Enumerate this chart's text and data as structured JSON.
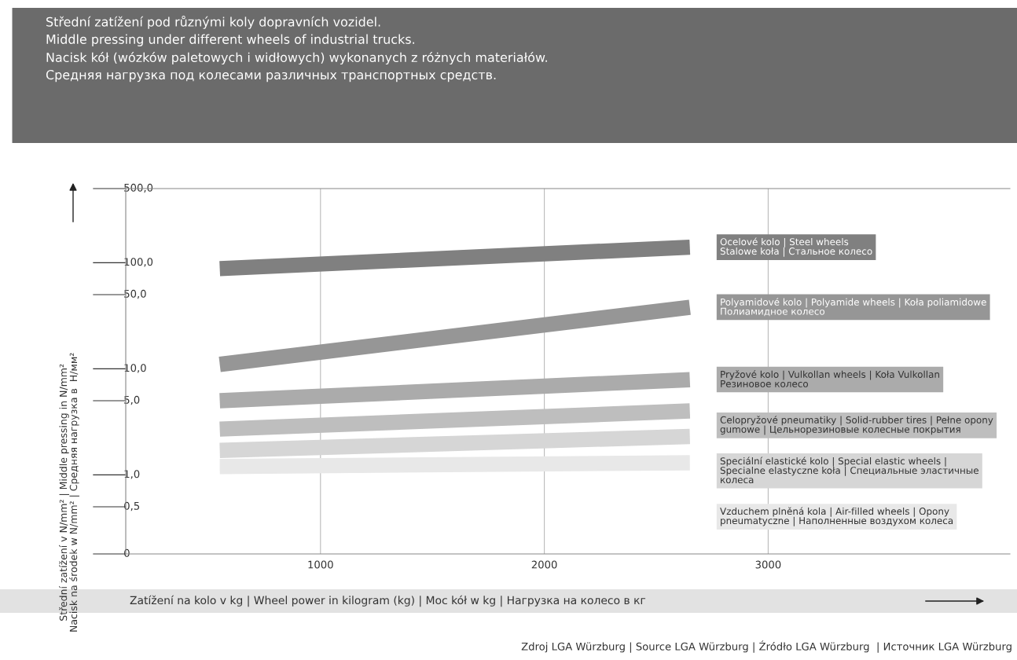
{
  "chart_data": {
    "type": "line",
    "title": "Střední zatížení pod různými koly dopravních vozidel.\nMiddle pressing under different wheels of industrial trucks.\nNacisk kół (wózków paletowych i widłowych) wykonanych z różnych materiałów.\nСредняя нагрузка под колесами различных транспортных средств.",
    "xlabel": "Zatížení na kolo v kg | Wheel power in kilogram (kg) | Moc kół w kg | Нагрузка на колесо в кг",
    "ylabel": "Střední zatížení v N/mm² | Middle pressing in N/mm²\nNacisk na środek w N/mm² | Средняя нагрузка в  Н/мм²",
    "annotations": [
      "Zdroj LGA Würzburg | Source LGA Würzburg | Źródło LGA Würzburg  | Источник LGA Würzburg"
    ],
    "x": [
      550,
      2650
    ],
    "series": [
      {
        "name": "Ocelové kolo | Steel wheels\nStalowe koła | Стальное колесо",
        "color": "#808080",
        "values": [
          88,
          140
        ]
      },
      {
        "name": "Polyamidové kolo | Polyamide wheels | Koła poliamidowe\nПолиамидное колесо",
        "color": "#969696",
        "values": [
          11,
          38
        ]
      },
      {
        "name": "Pryžové kolo | Vulkollan wheels | Koła Vulkollan\nРезиновое колесо",
        "color": "#ababab",
        "values": [
          5,
          7.9
        ]
      },
      {
        "name": "Celopryžové pneumatiky | Solid-rubber tires | Pełne opony\ngumowe | Цельнорезиновые колесные покрытия",
        "color": "#bebebe",
        "values": [
          2.7,
          4.0
        ]
      },
      {
        "name": "Speciální elastické kolo | Special elastic wheels |\nSpecialne elastyczne koła | Специальные эластичные\nколеса",
        "color": "#d6d6d6",
        "values": [
          1.7,
          2.3
        ]
      },
      {
        "name": "Vzduchem plněná kola | Air-filled wheels | Opony\npneumatyczne | Наполненные воздухом колеса",
        "color": "#e8e8e8",
        "values": [
          1.2,
          1.3
        ]
      }
    ],
    "log": "y",
    "xlim": [
      130,
      4080
    ],
    "xticks": [
      1000,
      2000,
      3000
    ],
    "ylim": [
      0,
      500
    ],
    "yticks": [
      {
        "value": 0,
        "label": "0"
      },
      {
        "value": 0.5,
        "label": "0,5"
      },
      {
        "value": 1,
        "label": "1,0"
      },
      {
        "value": 5,
        "label": "5,0"
      },
      {
        "value": 10,
        "label": "10,0"
      },
      {
        "value": 50,
        "label": "50,0"
      },
      {
        "value": 100,
        "label": "100,0"
      },
      {
        "value": 500,
        "label": "500,0"
      }
    ],
    "grid": "x",
    "legend": "right",
    "line_style": "solid",
    "marker": "none"
  }
}
